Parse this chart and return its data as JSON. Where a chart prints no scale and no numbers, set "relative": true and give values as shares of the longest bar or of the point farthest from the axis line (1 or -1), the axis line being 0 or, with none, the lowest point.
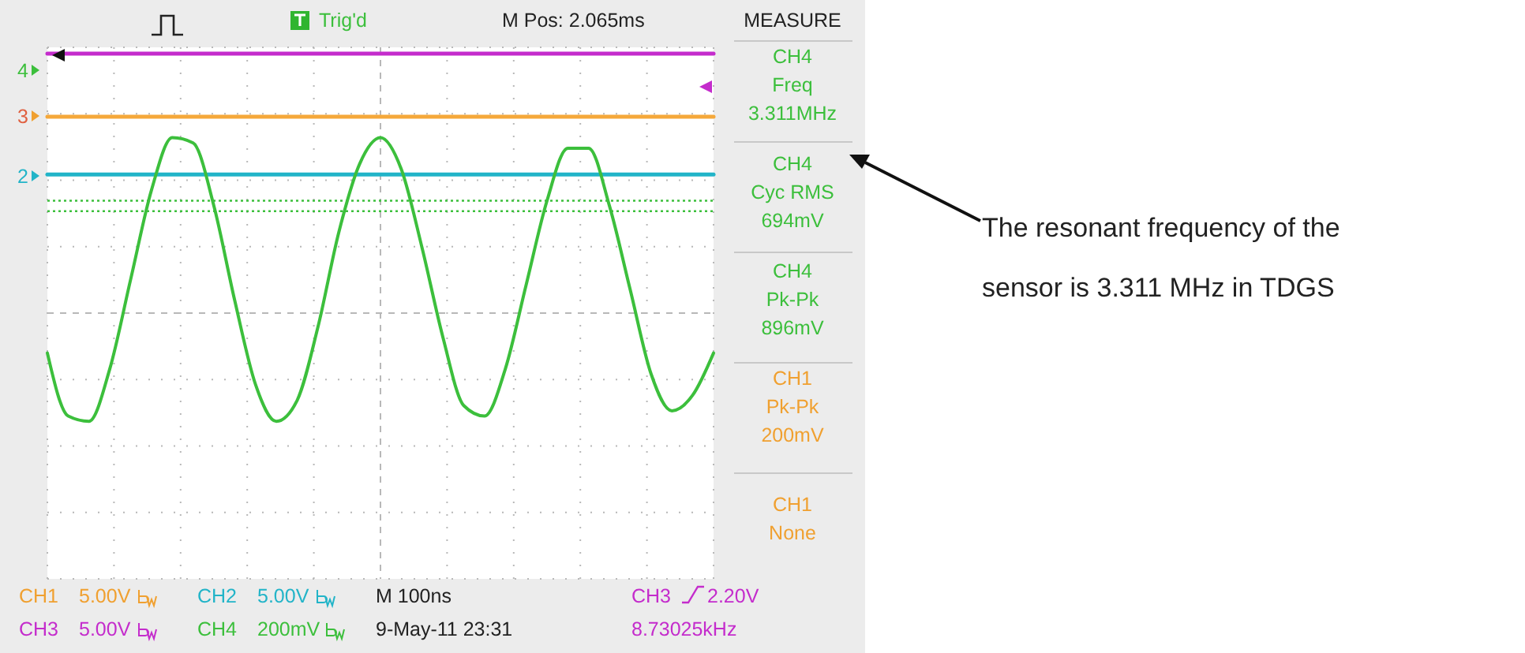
{
  "chart_data": {
    "type": "line",
    "relative": true,
    "grid": true,
    "marker": "none",
    "line_style": "solid",
    "categories": [
      null,
      null,
      null,
      null,
      null,
      null,
      null,
      null,
      null,
      null,
      null,
      null,
      null,
      null,
      null,
      null,
      null,
      null,
      null,
      null,
      null,
      null,
      null,
      null,
      null,
      null,
      null,
      null,
      null,
      null,
      null,
      null,
      null
    ],
    "series": [
      {
        "color": "#c42ccc",
        "values": [
          1,
          1,
          1,
          1,
          1,
          1,
          1,
          1,
          1,
          1,
          1,
          1,
          1,
          1,
          1,
          1,
          1,
          1,
          1,
          1,
          1,
          1,
          1,
          1,
          1,
          1,
          1,
          1,
          1,
          1,
          1,
          1,
          1
        ]
      },
      {
        "color": "#f5a83a",
        "values": [
          0.88,
          0.88,
          0.88,
          0.88,
          0.88,
          0.88,
          0.88,
          0.88,
          0.88,
          0.88,
          0.88,
          0.88,
          0.88,
          0.88,
          0.88,
          0.88,
          0.88,
          0.88,
          0.88,
          0.88,
          0.88,
          0.88,
          0.88,
          0.88,
          0.88,
          0.88,
          0.88,
          0.88,
          0.88,
          0.88,
          0.88,
          0.88,
          0.88
        ]
      },
      {
        "color": "#22b4c8",
        "values": [
          0.77,
          0.77,
          0.77,
          0.77,
          0.77,
          0.77,
          0.77,
          0.77,
          0.77,
          0.77,
          0.77,
          0.77,
          0.77,
          0.77,
          0.77,
          0.77,
          0.77,
          0.77,
          0.77,
          0.77,
          0.77,
          0.77,
          0.77,
          0.77,
          0.77,
          0.77,
          0.77,
          0.77,
          0.77,
          0.77,
          0.77,
          0.77,
          0.77
        ]
      },
      {
        "color": "#3cbf3c",
        "values": [
          0.43,
          0.31,
          0.3,
          0.4,
          0.57,
          0.74,
          0.84,
          0.83,
          0.71,
          0.53,
          0.37,
          0.3,
          0.34,
          0.48,
          0.66,
          0.79,
          0.84,
          0.78,
          0.63,
          0.46,
          0.33,
          0.31,
          0.4,
          0.56,
          0.72,
          0.82,
          0.82,
          0.71,
          0.55,
          0.39,
          0.32,
          0.35,
          0.43
        ]
      }
    ],
    "ref_lines": [
      {
        "axis": "y",
        "value": 0.72,
        "color": "#3cbf3c",
        "line_style": "dotted"
      },
      {
        "axis": "y",
        "value": 0.7,
        "color": "#3cbf3c",
        "line_style": "dotted"
      }
    ],
    "annotations": [
      "Trig'd",
      "M Pos: 2.065ms",
      "MEASURE",
      "CH4\nFreq\n3.311MHz",
      "CH4\nCyc RMS\n694mV",
      "CH4\nPk-Pk\n896mV",
      "CH1\nPk-Pk\n200mV",
      "CH1\nNone",
      "CH1",
      "5.00V",
      "CH2",
      "5.00V",
      "M 100ns",
      "CH3",
      "2.20V",
      "CH3",
      "5.00V",
      "CH4",
      "200mV",
      "9-May-11 23:31",
      "8.73025kHz",
      "4",
      "3",
      "2",
      "The resonant frequency of the sensor is 3.311 MHz in TDGS"
    ]
  }
}
